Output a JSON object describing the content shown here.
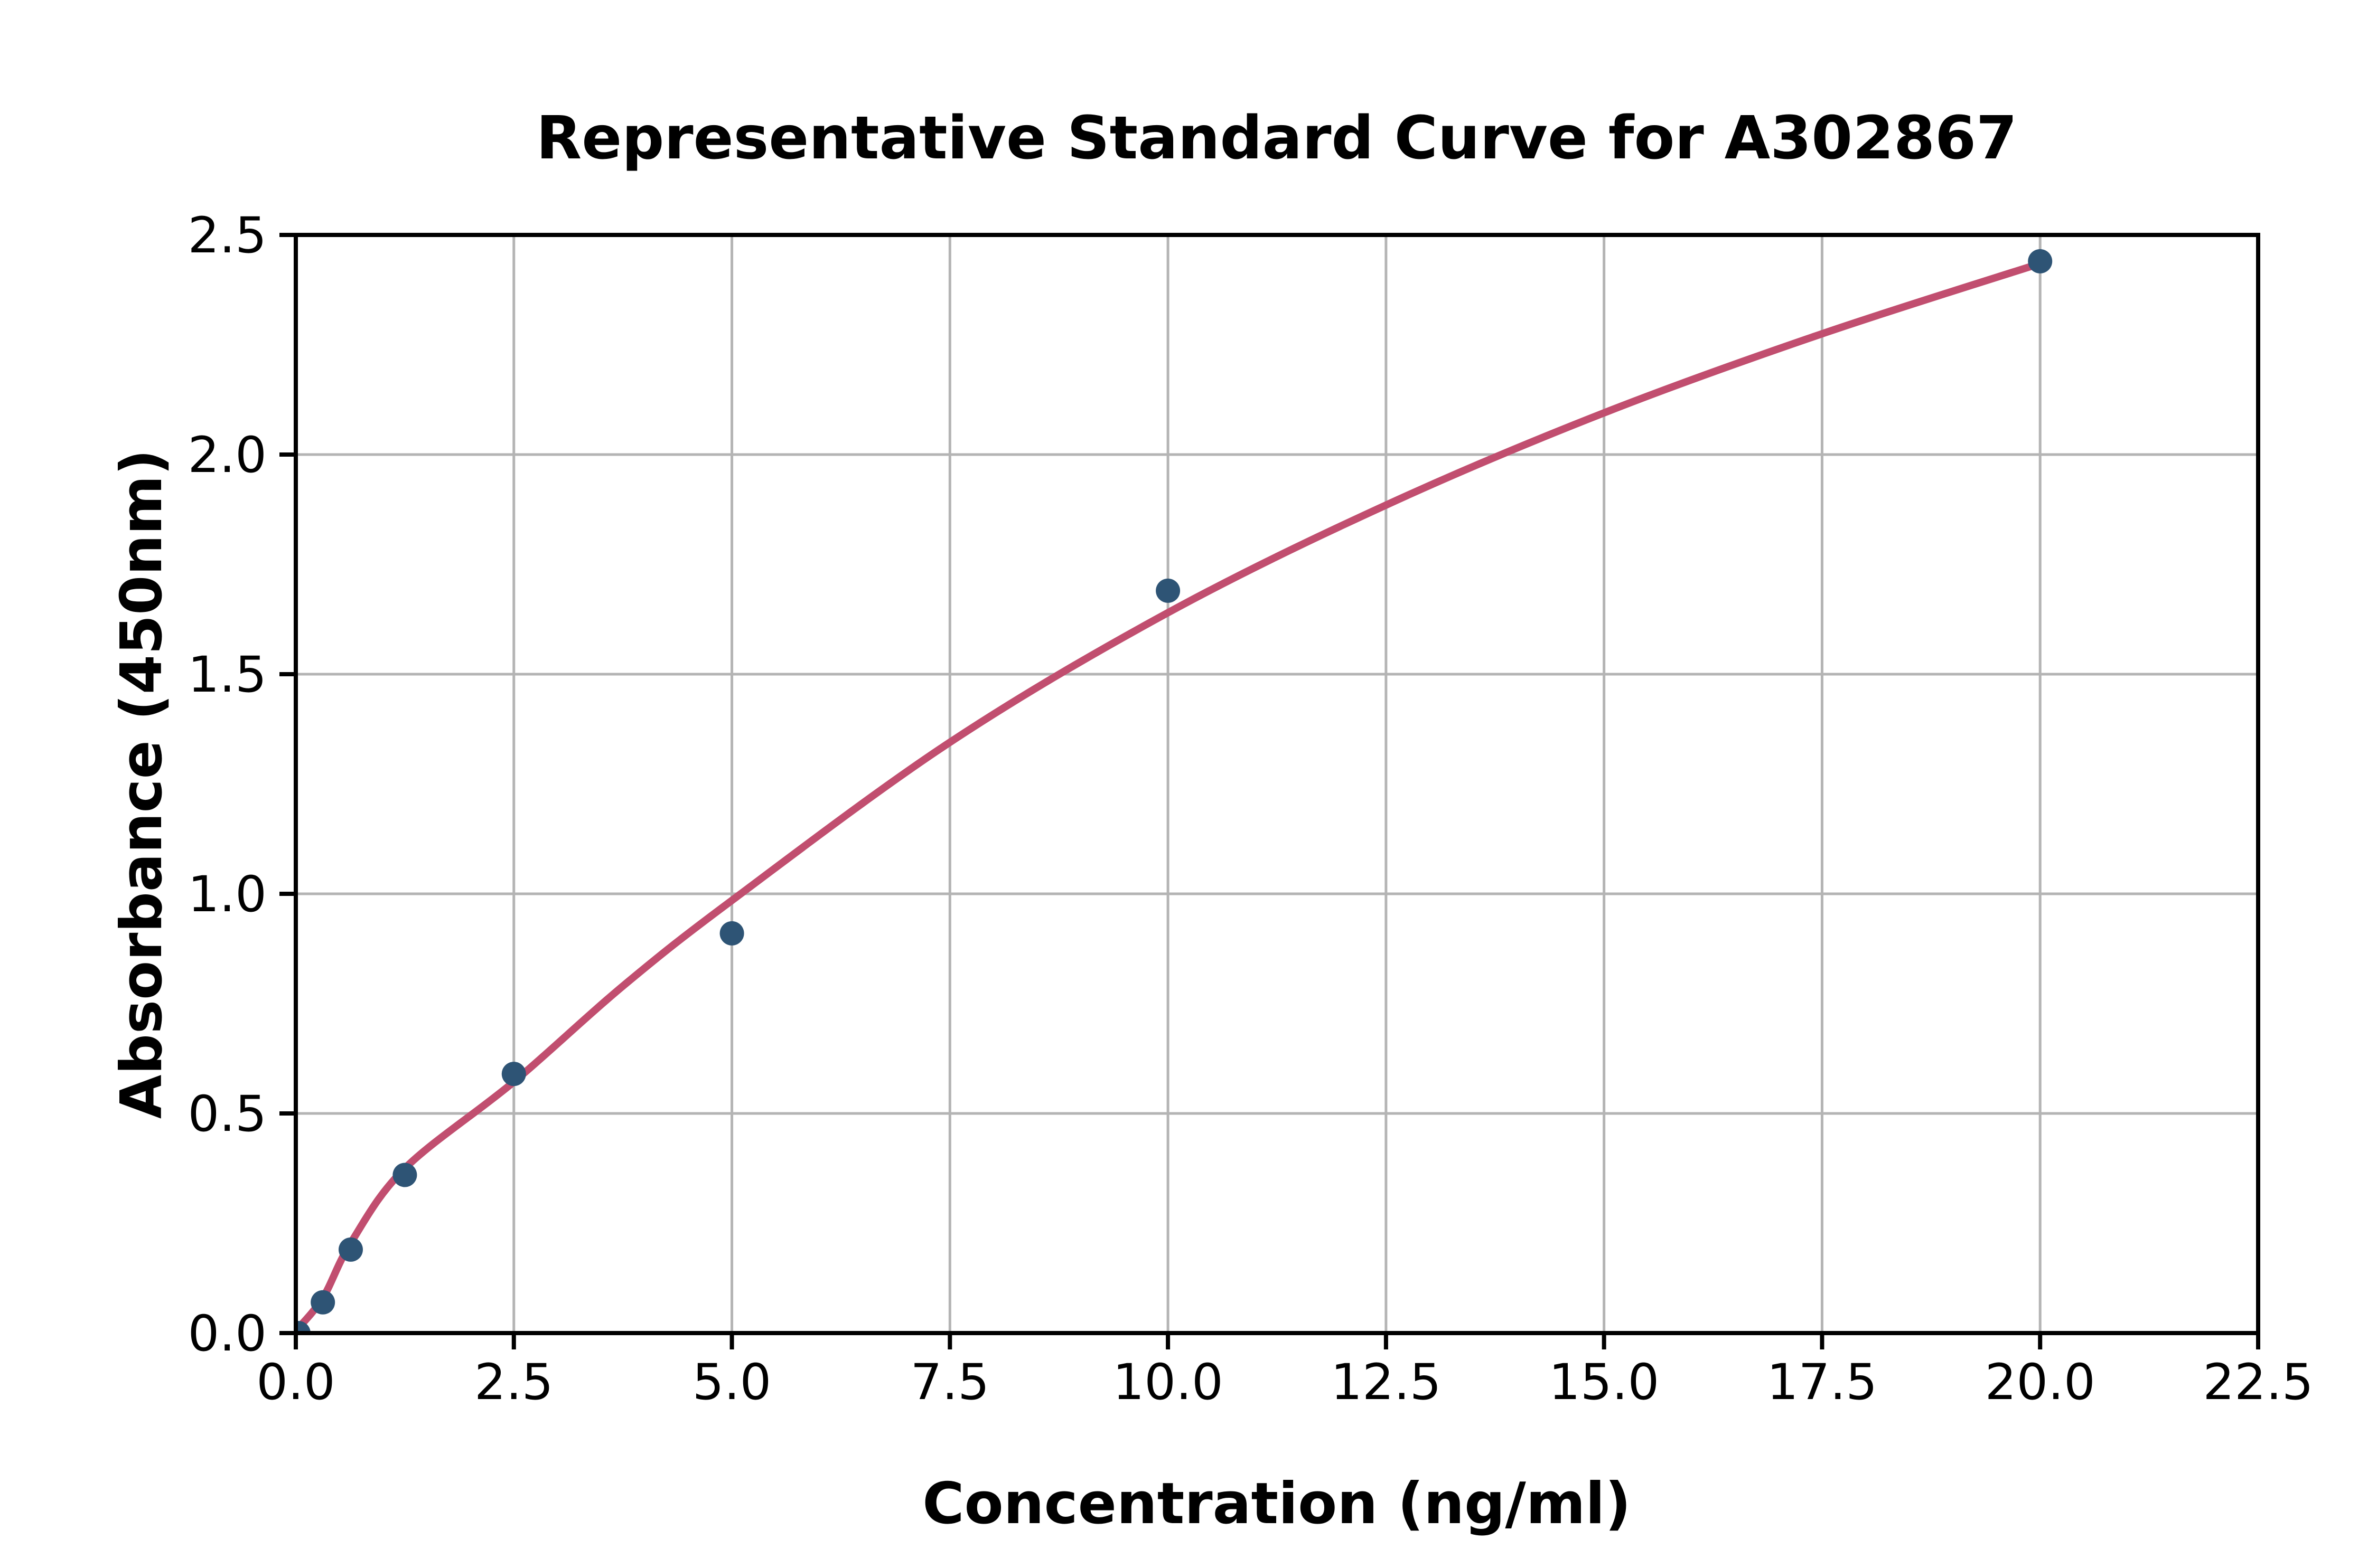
{
  "chart_data": {
    "type": "scatter",
    "title": "Representative Standard Curve for A302867",
    "xlabel": "Concentration (ng/ml)",
    "ylabel": "Absorbance (450nm)",
    "xlim": [
      0,
      22.5
    ],
    "ylim": [
      0,
      2.5
    ],
    "grid": true,
    "legend": "none",
    "x_ticks": {
      "values": [
        0,
        2.5,
        5,
        7.5,
        10,
        12.5,
        15,
        17.5,
        20,
        22.5
      ],
      "labels": [
        "0.0",
        "2.5",
        "5.0",
        "7.5",
        "10.0",
        "12.5",
        "15.0",
        "17.5",
        "20.0",
        "22.5"
      ]
    },
    "y_ticks": {
      "values": [
        0,
        0.5,
        1.0,
        1.5,
        2.0,
        2.5
      ],
      "labels": [
        "0.0",
        "0.5",
        "1.0",
        "1.5",
        "2.0",
        "2.5"
      ]
    },
    "series": [
      {
        "name": "standard-points",
        "render": "scatter",
        "marker": "circle",
        "color": "#2E5475",
        "points": [
          [
            0.03,
            0.0
          ],
          [
            0.31,
            0.07
          ],
          [
            0.63,
            0.19
          ],
          [
            1.25,
            0.36
          ],
          [
            2.5,
            0.59
          ],
          [
            5.0,
            0.91
          ],
          [
            10.0,
            1.69
          ],
          [
            20.0,
            2.44
          ]
        ]
      },
      {
        "name": "fitted-curve",
        "render": "line",
        "color": "#C14E6F",
        "points": [
          [
            0,
            0.005
          ],
          [
            0.31,
            0.08
          ],
          [
            0.63,
            0.205
          ],
          [
            1.25,
            0.375
          ],
          [
            2.5,
            0.572
          ],
          [
            3.75,
            0.79
          ],
          [
            5.0,
            0.985
          ],
          [
            7.5,
            1.345
          ],
          [
            10.0,
            1.64
          ],
          [
            12.5,
            1.885
          ],
          [
            15.0,
            2.095
          ],
          [
            17.5,
            2.275
          ],
          [
            20.0,
            2.435
          ]
        ]
      }
    ],
    "colors": {
      "background": "#FFFFFF",
      "grid": "#B4B4B4",
      "axis": "#000000",
      "point": "#2E5475",
      "curve": "#C14E6F"
    }
  }
}
